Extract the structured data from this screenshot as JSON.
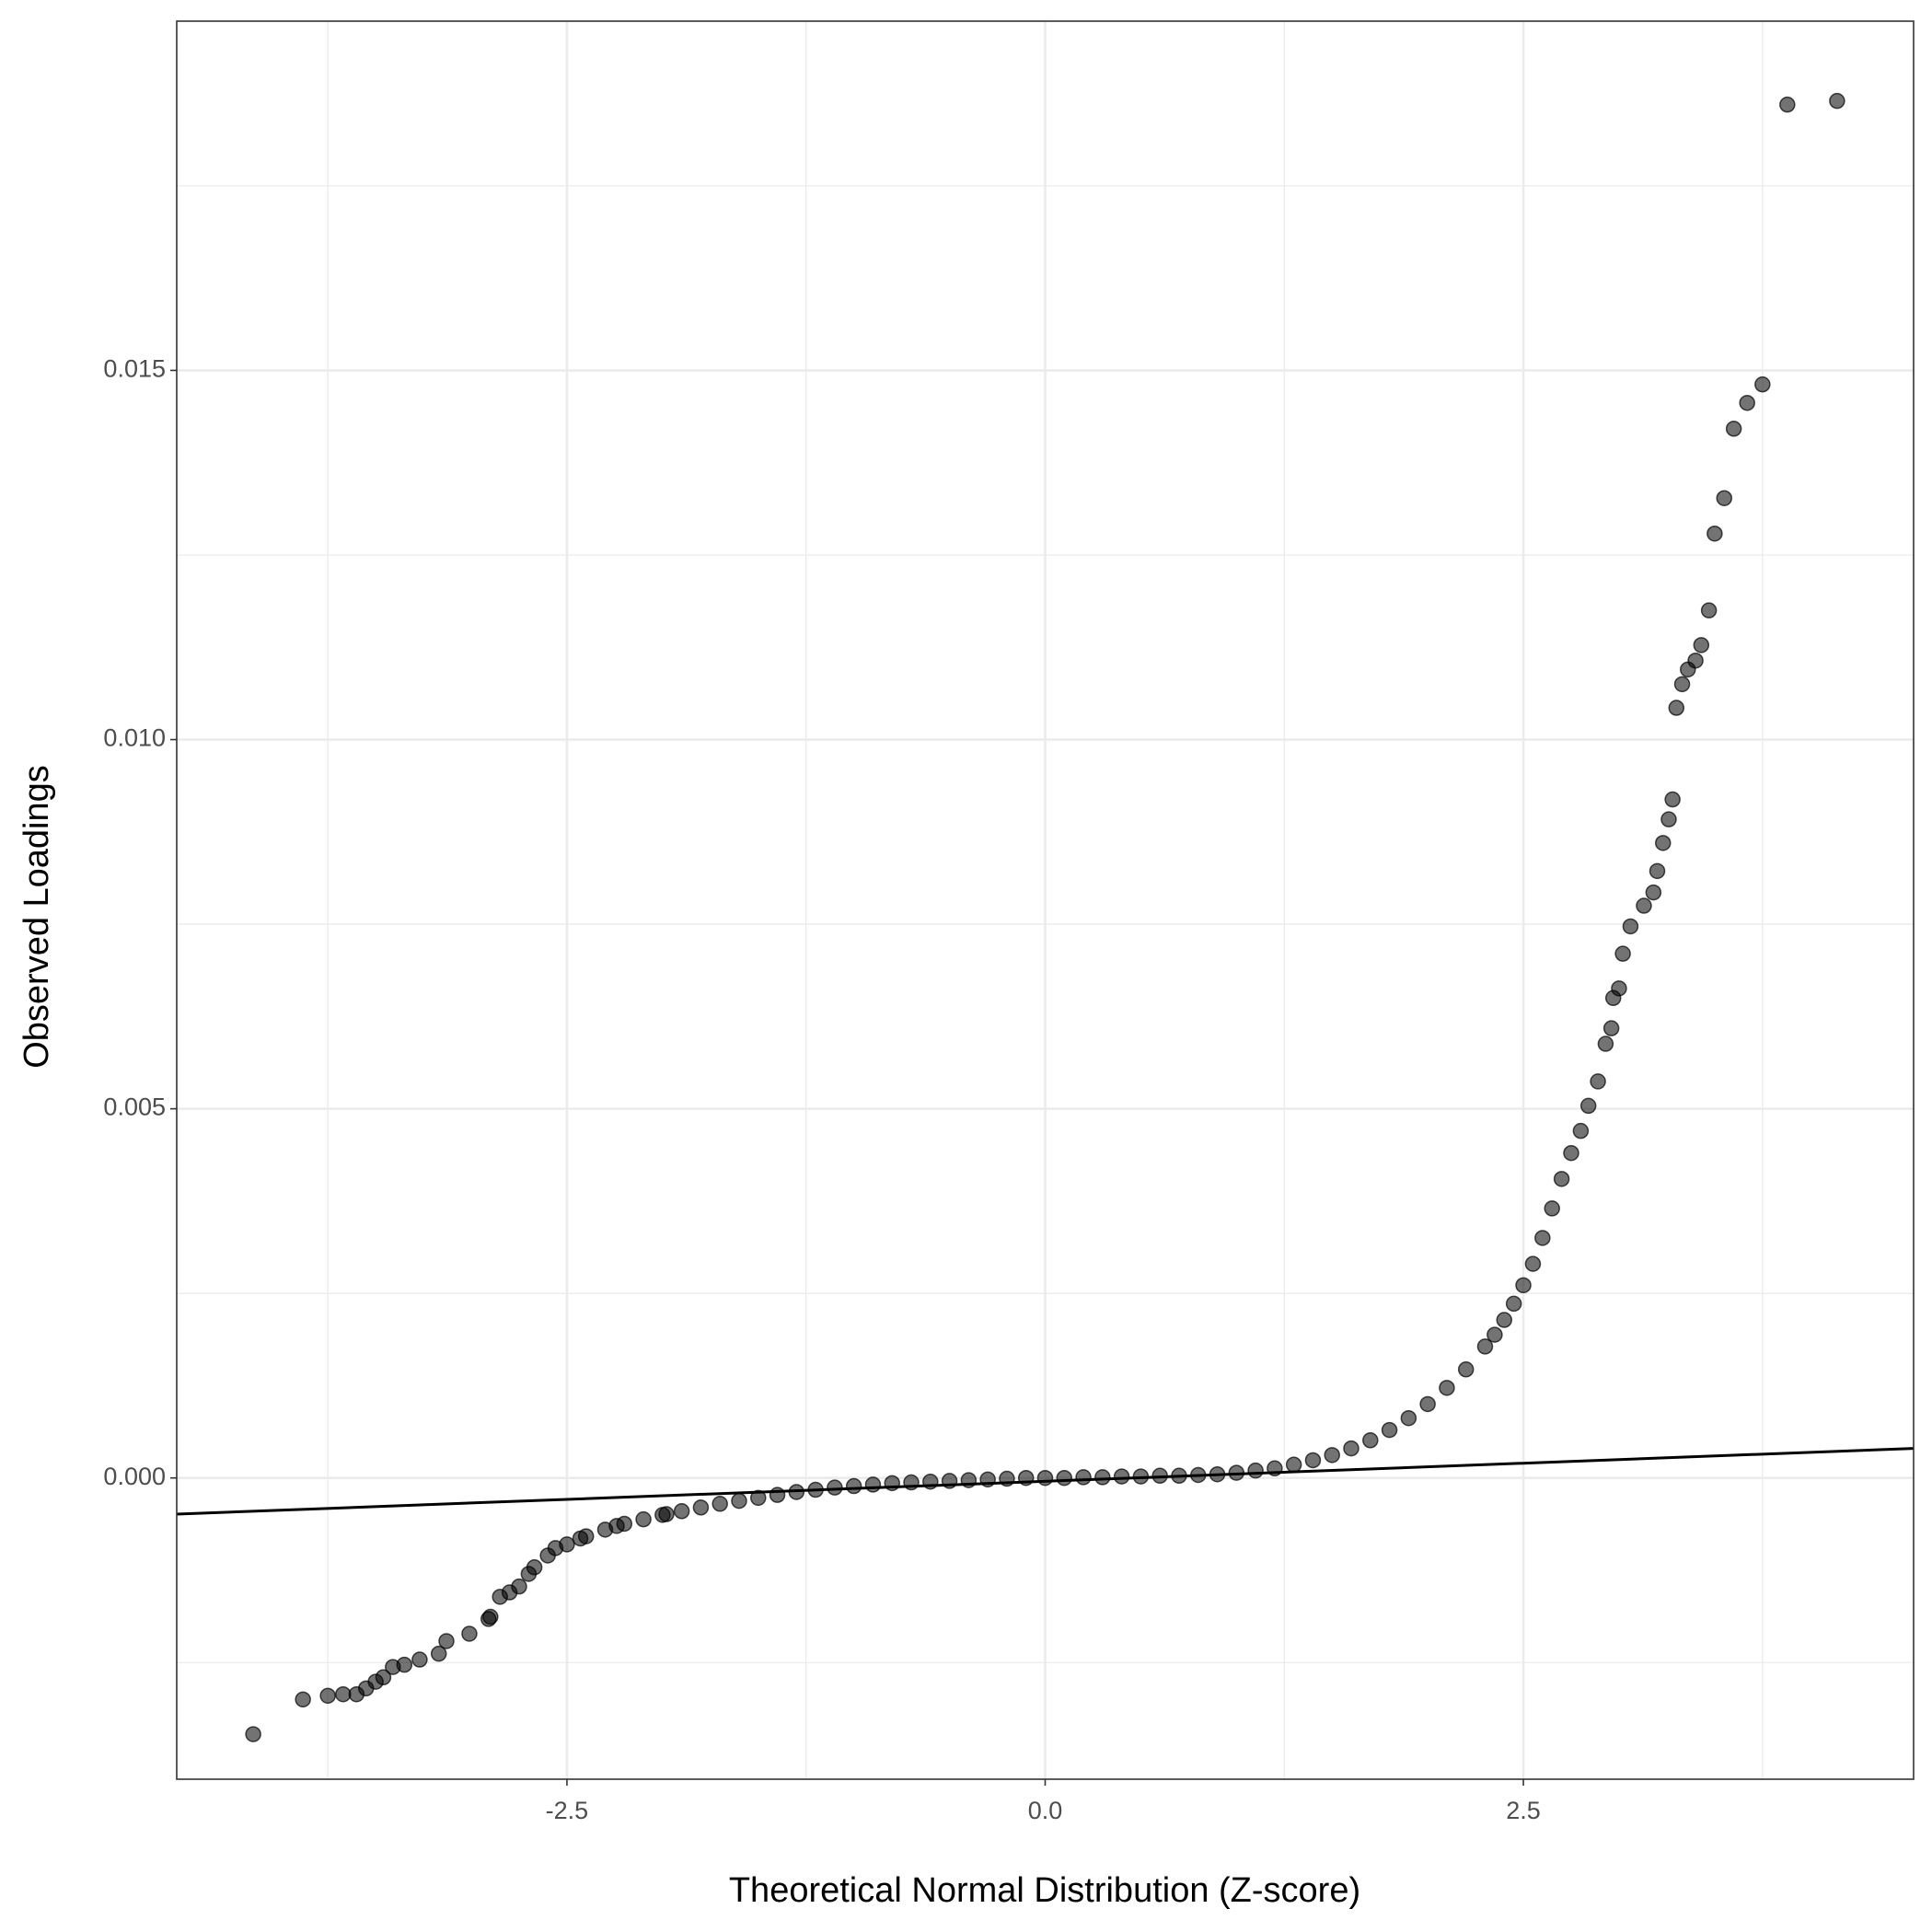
{
  "chart_data": {
    "type": "scatter",
    "x_label": "Theoretical Normal Distribution (Z-score)",
    "y_label": "Observed Loadings",
    "xlim": [
      -4.54,
      4.54
    ],
    "ylim": [
      -0.00408,
      0.01973
    ],
    "xticks": [
      -2.5,
      {
        "value": 0,
        "label": "0.0"
      },
      2.5
    ],
    "yticks": [
      {
        "value": 0,
        "label": "0.000"
      },
      0.005,
      {
        "value": 0.01,
        "label": "0.010"
      },
      0.015
    ],
    "grid": true,
    "minor_grid": true,
    "color": "#000000",
    "reference_line": {
      "x": [
        -4.54,
        4.54
      ],
      "y": [
        -0.00049,
        0.0004
      ],
      "color": "#000000"
    },
    "x": [
      -4.14,
      -3.88,
      -3.75,
      -3.67,
      -3.6,
      -3.55,
      -3.5,
      -3.46,
      -3.41,
      -3.35,
      -3.27,
      -3.17,
      -3.13,
      -3.01,
      -2.91,
      -2.9,
      -2.85,
      -2.8,
      -2.75,
      -2.7,
      -2.67,
      -2.6,
      -2.56,
      -2.5,
      -2.43,
      -2.4,
      -2.3,
      -2.24,
      -2.2,
      -2.1,
      -2.0,
      -1.98,
      -1.9,
      -1.8,
      -1.7,
      -1.6,
      -1.5,
      -1.4,
      -1.3,
      -1.2,
      -1.1,
      -1.0,
      -0.9,
      -0.8,
      -0.7,
      -0.6,
      -0.5,
      -0.4,
      -0.3,
      -0.2,
      -0.1,
      0,
      0.1,
      0.2,
      0.3,
      0.4,
      0.5,
      0.6,
      0.7,
      0.8,
      0.9,
      1.0,
      1.1,
      1.2,
      1.3,
      1.4,
      1.5,
      1.6,
      1.7,
      1.8,
      1.9,
      2.0,
      2.1,
      2.2,
      2.3,
      2.35,
      2.4,
      2.45,
      2.5,
      2.55,
      2.6,
      2.65,
      2.7,
      2.75,
      2.8,
      2.84,
      2.89,
      2.93,
      2.96,
      2.97,
      3.0,
      3.02,
      3.06,
      3.13,
      3.18,
      3.2,
      3.23,
      3.26,
      3.28,
      3.3,
      3.33,
      3.36,
      3.4,
      3.43,
      3.47,
      3.5,
      3.55,
      3.6,
      3.67,
      3.75,
      3.88,
      4.14
    ],
    "values": [
      -0.00347,
      -0.003,
      -0.00295,
      -0.00293,
      -0.00293,
      -0.00285,
      -0.00276,
      -0.0027,
      -0.00256,
      -0.00253,
      -0.00246,
      -0.00238,
      -0.00221,
      -0.00211,
      -0.00191,
      -0.00188,
      -0.00161,
      -0.00155,
      -0.00147,
      -0.0013,
      -0.00121,
      -0.00105,
      -0.00095,
      -0.0009,
      -0.00082,
      -0.00079,
      -0.0007,
      -0.00065,
      -0.00062,
      -0.00056,
      -0.0005,
      -0.00049,
      -0.00045,
      -0.0004,
      -0.00035,
      -0.00031,
      -0.00027,
      -0.00023,
      -0.00019,
      -0.00016,
      -0.00013,
      -0.00011,
      -9e-05,
      -7e-05,
      -6e-05,
      -5e-05,
      -4e-05,
      -3e-05,
      -2e-05,
      -1e-05,
      0,
      0,
      0,
      1e-05,
      1e-05,
      2e-05,
      2e-05,
      3e-05,
      3e-05,
      4e-05,
      5e-05,
      7e-05,
      0.0001,
      0.00013,
      0.00018,
      0.00024,
      0.00031,
      0.0004,
      0.00051,
      0.00065,
      0.00081,
      0.001,
      0.00122,
      0.00147,
      0.00178,
      0.00194,
      0.00214,
      0.00236,
      0.00261,
      0.0029,
      0.00325,
      0.00365,
      0.00405,
      0.0044,
      0.0047,
      0.00504,
      0.00537,
      0.00588,
      0.00609,
      0.0065,
      0.00663,
      0.0071,
      0.00747,
      0.00775,
      0.00793,
      0.00822,
      0.0086,
      0.00892,
      0.00919,
      0.01043,
      0.01075,
      0.01095,
      0.01107,
      0.01128,
      0.01175,
      0.01279,
      0.01327,
      0.01421,
      0.01456,
      0.01481,
      0.0186,
      0.01865
    ]
  }
}
